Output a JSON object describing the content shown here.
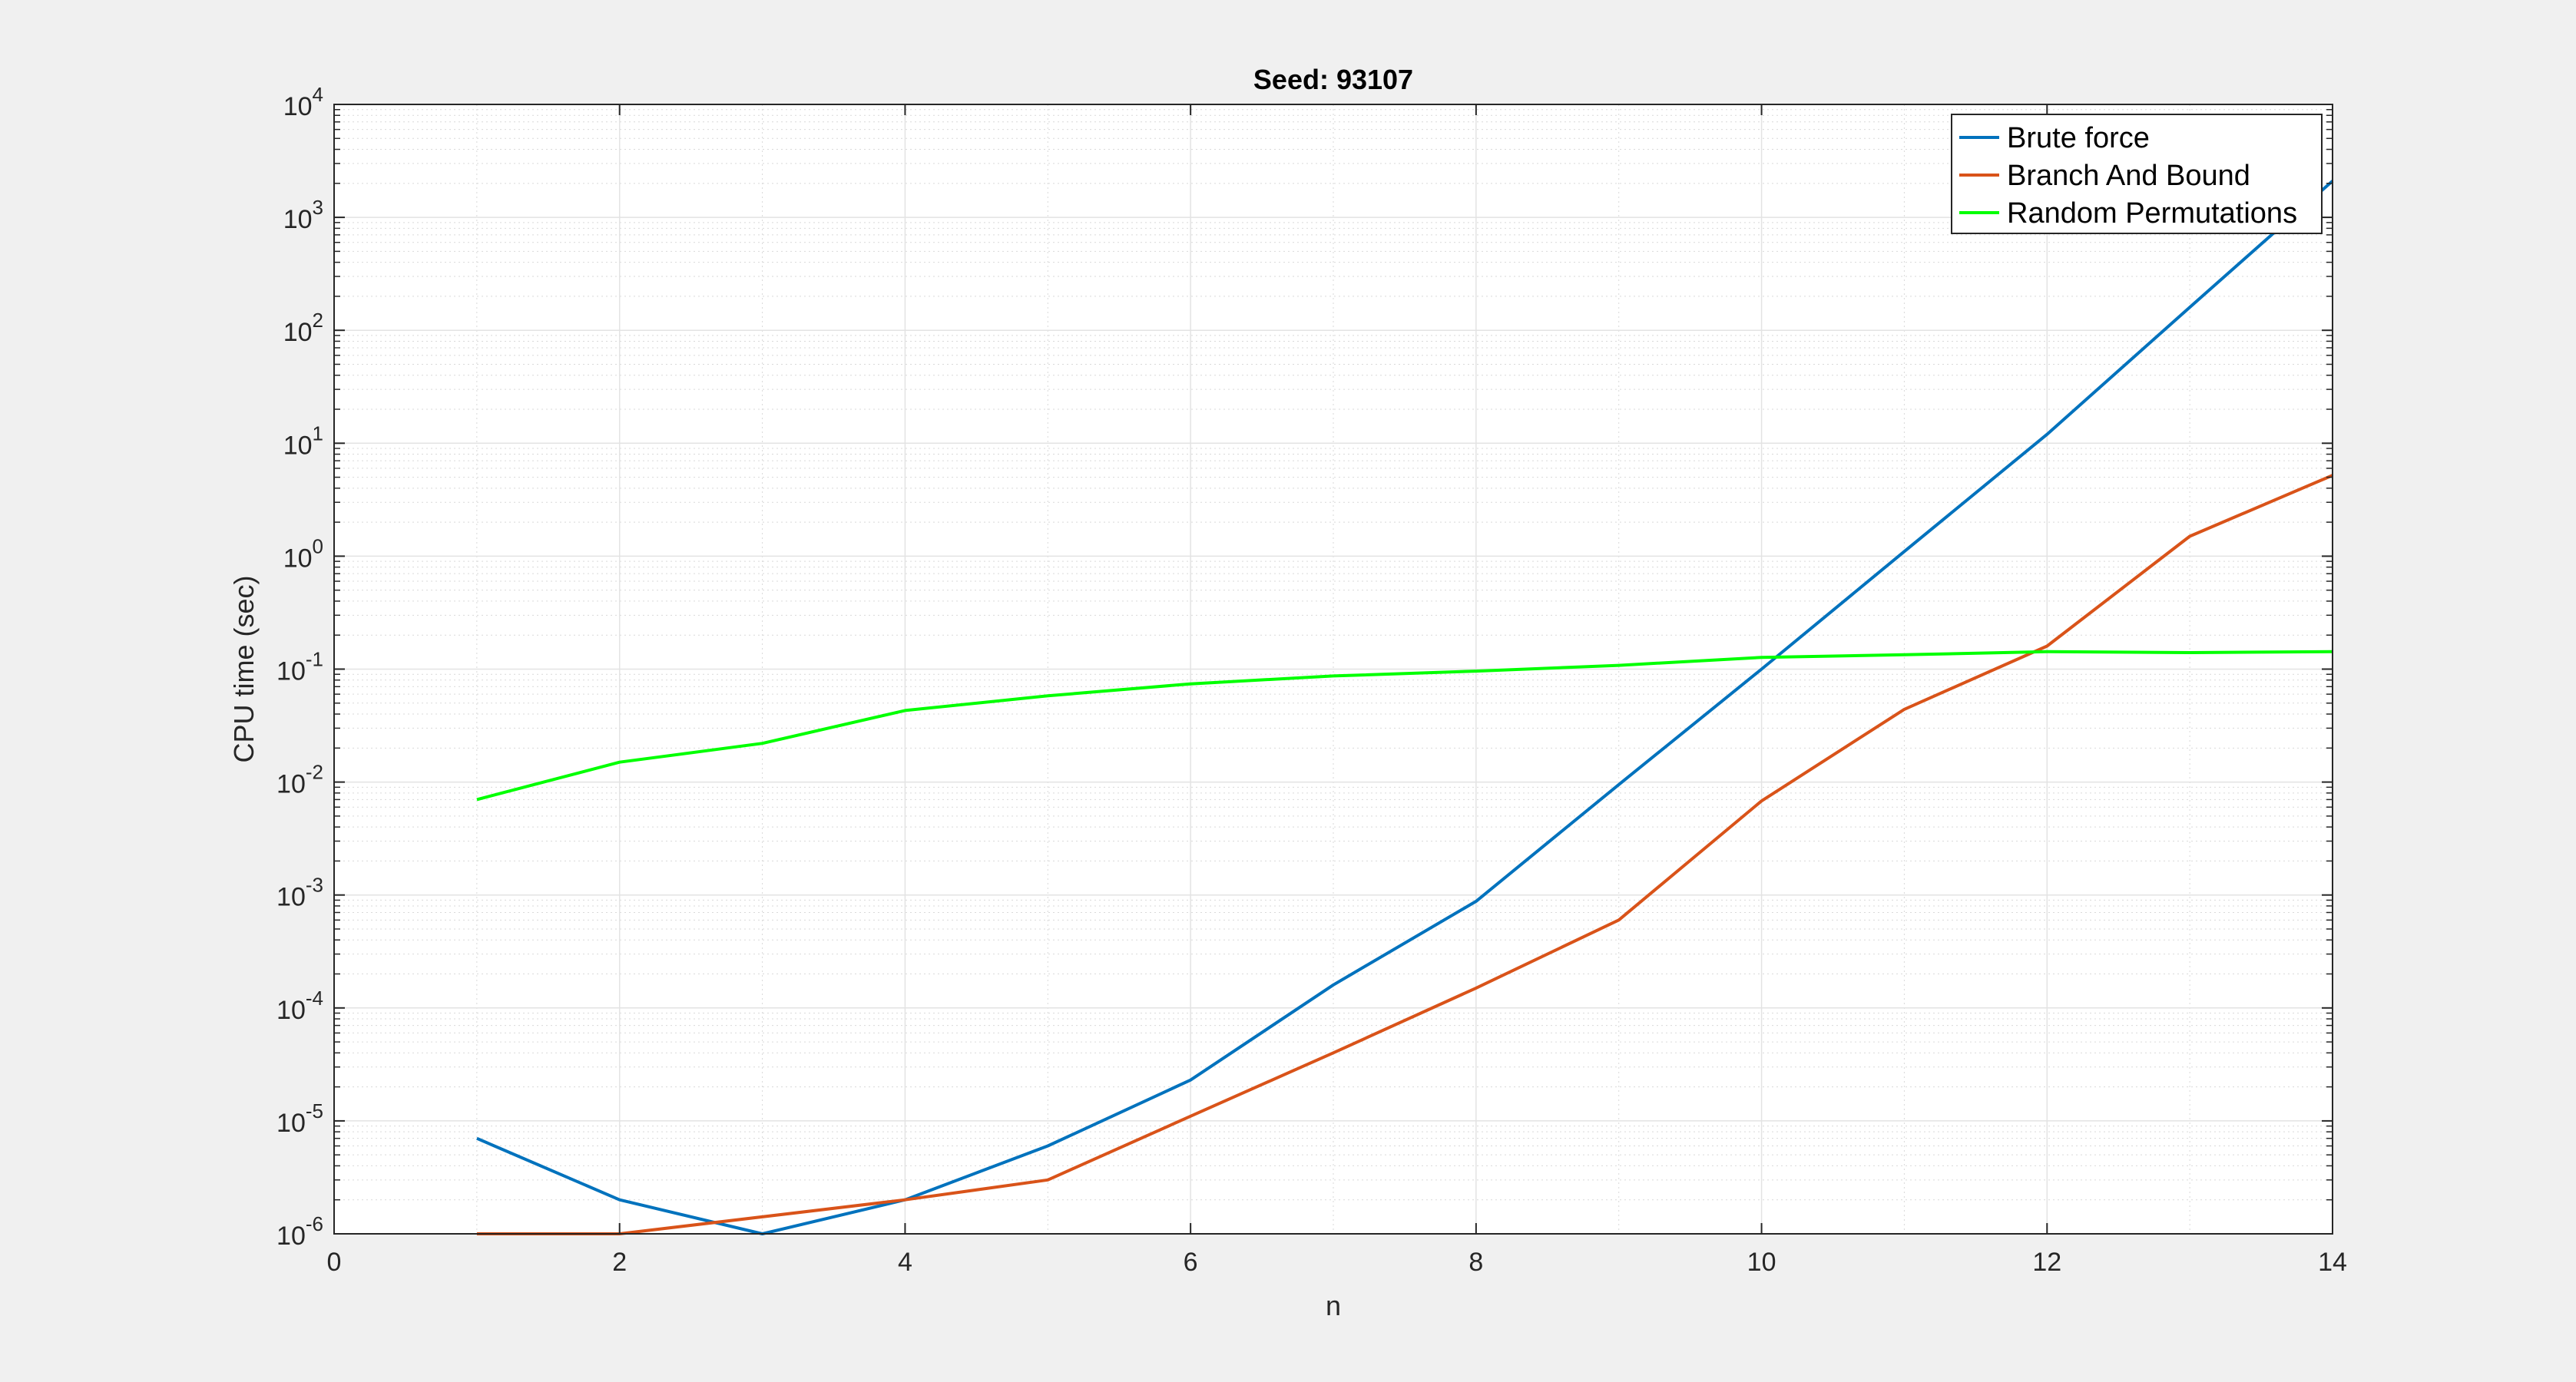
{
  "chart_data": {
    "type": "line",
    "title": "Seed: 93107",
    "xlabel": "n",
    "ylabel": "CPU time (sec)",
    "xlim": [
      0,
      14
    ],
    "ylim": [
      1e-06,
      10000
    ],
    "yscale": "log",
    "grid": true,
    "minor_grid": true,
    "legend_position": "top-right",
    "x_ticks": [
      0,
      2,
      4,
      6,
      8,
      10,
      12,
      14
    ],
    "x_tick_labels": [
      "0",
      "2",
      "4",
      "6",
      "8",
      "10",
      "12",
      "14"
    ],
    "y_ticks": [
      {
        "value": 1e-06,
        "base": "10",
        "exp": "-6"
      },
      {
        "value": 1e-05,
        "base": "10",
        "exp": "-5"
      },
      {
        "value": 0.0001,
        "base": "10",
        "exp": "-4"
      },
      {
        "value": 0.001,
        "base": "10",
        "exp": "-3"
      },
      {
        "value": 0.01,
        "base": "10",
        "exp": "-2"
      },
      {
        "value": 0.1,
        "base": "10",
        "exp": "-1"
      },
      {
        "value": 1,
        "base": "10",
        "exp": "0"
      },
      {
        "value": 10,
        "base": "10",
        "exp": "1"
      },
      {
        "value": 100,
        "base": "10",
        "exp": "2"
      },
      {
        "value": 1000,
        "base": "10",
        "exp": "3"
      },
      {
        "value": 10000,
        "base": "10",
        "exp": "4"
      }
    ],
    "series": [
      {
        "name": "Brute force",
        "color": "#0072BD",
        "x": [
          1,
          2,
          3,
          4,
          5,
          6,
          7,
          8,
          9,
          10,
          11,
          12,
          13,
          14
        ],
        "y": [
          7e-06,
          2e-06,
          1e-06,
          2e-06,
          6e-06,
          2.3e-05,
          0.00016,
          0.00088,
          0.0095,
          0.1,
          1.1,
          12,
          160,
          2100
        ]
      },
      {
        "name": "Branch And Bound",
        "color": "#D95319",
        "x": [
          1,
          2,
          4,
          5,
          6,
          7,
          8,
          9,
          10,
          11,
          12,
          13,
          14
        ],
        "y": [
          1e-06,
          1e-06,
          2e-06,
          3e-06,
          1.1e-05,
          4e-05,
          0.00015,
          0.0006,
          0.0068,
          0.044,
          0.16,
          1.5,
          5.2
        ]
      },
      {
        "name": "Random Permutations",
        "color": "#00FF00",
        "x": [
          1,
          2,
          3,
          4,
          5,
          6,
          7,
          8,
          9,
          10,
          11,
          12,
          13,
          14
        ],
        "y": [
          0.007,
          0.015,
          0.022,
          0.043,
          0.058,
          0.074,
          0.087,
          0.096,
          0.108,
          0.127,
          0.134,
          0.143,
          0.14,
          0.143
        ]
      }
    ]
  }
}
